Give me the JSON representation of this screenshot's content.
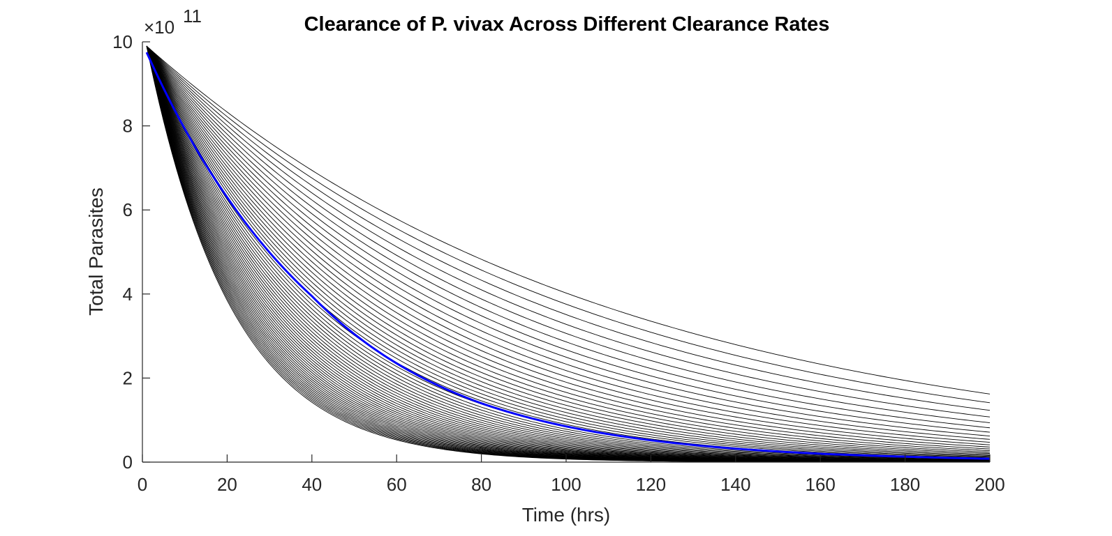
{
  "chart_data": {
    "type": "line",
    "title": "Clearance of P. vivax Across Different Clearance Rates",
    "xlabel": "Time (hrs)",
    "ylabel": "Total Parasites",
    "y_exponent_label": "×10",
    "y_exponent": "11",
    "xlim": [
      0,
      200
    ],
    "ylim": [
      0,
      10
    ],
    "y_scale_factor": 100000000000.0,
    "x_ticks": [
      0,
      20,
      40,
      60,
      80,
      100,
      120,
      140,
      160,
      180,
      200
    ],
    "y_ticks": [
      0,
      2,
      4,
      6,
      8,
      10
    ],
    "x_start": 1,
    "x_end": 200,
    "initial_value": 9.9,
    "grid": false,
    "legend": "none",
    "series_family": {
      "count": 60,
      "values_at_x200": {
        "lowest": 0.0,
        "highest": 1.62
      },
      "color": "#000000"
    },
    "highlight_series": {
      "color": "#0000ff",
      "samples": [
        {
          "x": 1,
          "y": 9.75
        },
        {
          "x": 20,
          "y": 6.3
        },
        {
          "x": 40,
          "y": 3.95
        },
        {
          "x": 60,
          "y": 2.35
        },
        {
          "x": 80,
          "y": 1.4
        },
        {
          "x": 100,
          "y": 0.85
        },
        {
          "x": 120,
          "y": 0.52
        },
        {
          "x": 140,
          "y": 0.32
        },
        {
          "x": 160,
          "y": 0.2
        },
        {
          "x": 180,
          "y": 0.13
        },
        {
          "x": 200,
          "y": 0.08
        }
      ]
    }
  }
}
